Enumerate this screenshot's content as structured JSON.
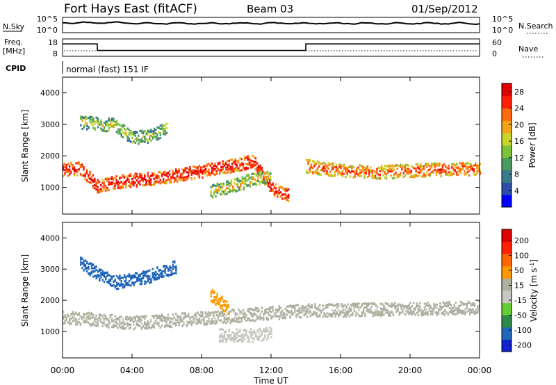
{
  "header": {
    "station": "Fort Hays East (fitACF)",
    "beam": "Beam 03",
    "date": "01/Sep/2012"
  },
  "noise_panel": {
    "left_label": "N.Sky",
    "right_label": "N.Search",
    "left_ticks": [
      "10^5",
      "10^0"
    ],
    "right_ticks": [
      "10^5",
      "10^0"
    ]
  },
  "freq_panel": {
    "left_label_top": "Freq.",
    "left_label_bottom": "[MHz]",
    "left_ticks": [
      "18",
      "8"
    ],
    "right_label": "Nave",
    "right_ticks": [
      "60",
      "0"
    ],
    "cpid_label": "CPID",
    "cpid_text": "normal (fast) 151 IF",
    "freq_values": [
      {
        "t": 0,
        "v": 14
      },
      {
        "t": 2,
        "v": 14
      },
      {
        "t": 2,
        "v": 8.8
      },
      {
        "t": 14,
        "v": 8.8
      },
      {
        "t": 14,
        "v": 14
      },
      {
        "t": 24,
        "v": 14
      }
    ]
  },
  "axes": {
    "ylabel": "Slant Range [km]",
    "xlabel": "Time UT",
    "x_ticks": [
      "00:00",
      "04:00",
      "08:00",
      "12:00",
      "16:00",
      "20:00",
      "00:00"
    ],
    "y_ticks": [
      "1000",
      "2000",
      "3000",
      "4000"
    ]
  },
  "colors": {
    "power_scale": [
      "#0000ff",
      "#2b4fa8",
      "#3a7a8a",
      "#4a9a60",
      "#7dc03b",
      "#c8d42a",
      "#f3a21a",
      "#ff6a10",
      "#ff1f08",
      "#e00000"
    ],
    "velocity_scale": [
      "#1122cc",
      "#2266bb",
      "#2f8a4a",
      "#66cc33",
      "#c8c8c0",
      "#b0b0a0",
      "#ff9900",
      "#ff6600",
      "#ff2200",
      "#dd0000"
    ]
  },
  "chart_data": [
    {
      "type": "heatmap",
      "title": "Power",
      "x_range": [
        0,
        24
      ],
      "ylim": [
        150,
        4500
      ],
      "colorbar": {
        "label": "Power [dB]",
        "ticks": [
          "4",
          "8",
          "12",
          "16",
          "20",
          "24",
          "28"
        ],
        "range": [
          0,
          30
        ]
      },
      "features": [
        {
          "name": "strong band",
          "t": [
            0,
            1,
            2,
            3,
            5,
            7,
            9,
            11,
            12,
            13
          ],
          "r": [
            1600,
            1620,
            1050,
            1200,
            1300,
            1450,
            1650,
            1850,
            1000,
            800
          ],
          "value": 28
        },
        {
          "name": "band after gap",
          "t": [
            14,
            16,
            18,
            20,
            22,
            24
          ],
          "r": [
            1700,
            1560,
            1500,
            1560,
            1600,
            1620
          ],
          "value": 24
        },
        {
          "name": "upper blob",
          "t": [
            1,
            3,
            4,
            5,
            6
          ],
          "r": [
            3100,
            3000,
            2600,
            2650,
            2900
          ],
          "value": 16
        },
        {
          "name": "mid-day patch",
          "t": [
            8.5,
            10,
            11,
            12
          ],
          "r": [
            900,
            1100,
            1300,
            1400
          ],
          "value": 18
        }
      ]
    },
    {
      "type": "heatmap",
      "title": "Velocity",
      "x_range": [
        0,
        24
      ],
      "ylim": [
        150,
        4500
      ],
      "colorbar": {
        "label": "Velocity [m s^-1]",
        "ticks": [
          "200",
          "100",
          "50",
          "15",
          "-15",
          "-50",
          "-100",
          "-200"
        ],
        "range": [
          -250,
          250
        ]
      },
      "features": [
        {
          "name": "toward radar",
          "t": [
            1,
            3,
            5,
            6.5
          ],
          "r": [
            3200,
            2600,
            2800,
            3100
          ],
          "value": 180
        },
        {
          "name": "ground scatter",
          "t": [
            0,
            4,
            8,
            14,
            20,
            24
          ],
          "r": [
            1500,
            1300,
            1450,
            1700,
            1750,
            1800
          ],
          "value": 0
        },
        {
          "name": "away patch",
          "t": [
            8.5,
            9.5
          ],
          "r": [
            2200,
            1800
          ],
          "value": -60
        },
        {
          "name": "low green",
          "t": [
            9,
            11,
            12
          ],
          "r": [
            900,
            900,
            1000
          ],
          "value": 40
        }
      ]
    }
  ]
}
